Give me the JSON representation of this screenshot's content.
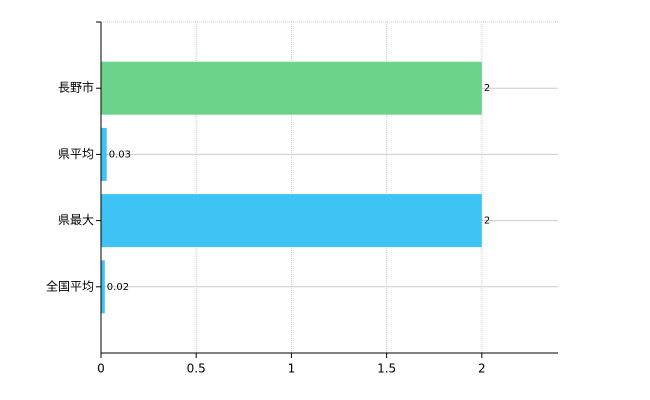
{
  "chart_data": {
    "type": "bar",
    "orientation": "horizontal",
    "categories": [
      "長野市",
      "県平均",
      "県最大",
      "全国平均"
    ],
    "values": [
      2,
      0.03,
      2,
      0.02
    ],
    "colors": [
      "#6cd38b",
      "#3ec3f5",
      "#3ec3f5",
      "#3ec3f5"
    ],
    "xlim": [
      0,
      2.4
    ],
    "xticks": [
      0,
      0.5,
      1,
      1.5,
      2
    ],
    "grid": true
  }
}
